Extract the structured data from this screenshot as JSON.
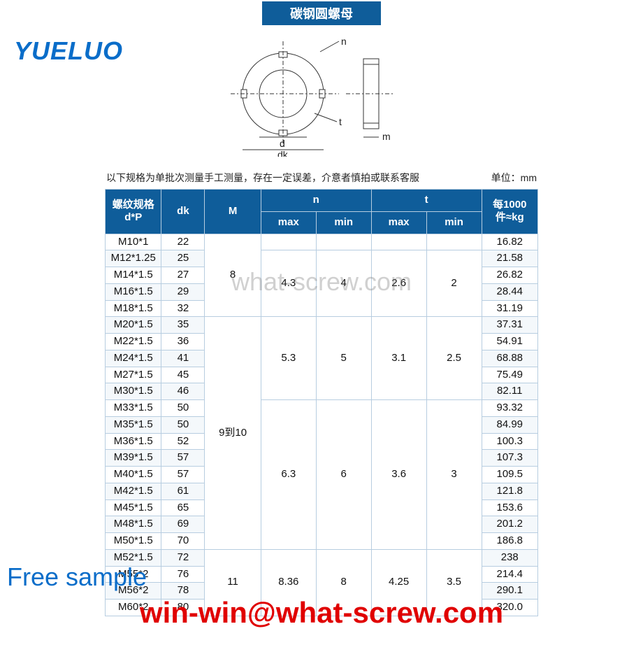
{
  "colors": {
    "banner_bg": "#0f5d9a",
    "header_bg": "#0f5d9a",
    "border": "#b7cde0",
    "logo": "#0a6dc9",
    "email_red": "#e00000"
  },
  "title": "碳钢圆螺母",
  "logo": "YUELUO",
  "note": "以下规格为单批次测量手工测量，存在一定误差，介意者慎拍或联系客服",
  "unit_label": "单位：mm",
  "diagram": {
    "labels": {
      "d": "d",
      "dk": "dk",
      "t": "t",
      "m": "m",
      "n": "n"
    }
  },
  "headers": {
    "spec": "螺纹规格\nd*P",
    "dk": "dk",
    "M": "M",
    "n": "n",
    "t": "t",
    "weight": "每1000\n件≈kg",
    "max": "max",
    "min": "min"
  },
  "m_groups": [
    {
      "value": "8",
      "span": 5
    },
    {
      "value": "9到10",
      "span": 14
    },
    {
      "value": "11",
      "span": 4
    }
  ],
  "nt_groups": [
    {
      "nmax": "",
      "nmin": "",
      "tmax": "",
      "tmin": "",
      "span": 1
    },
    {
      "nmax": "4.3",
      "nmin": "4",
      "tmax": "2.6",
      "tmin": "2",
      "span": 4
    },
    {
      "nmax": "5.3",
      "nmin": "5",
      "tmax": "3.1",
      "tmin": "2.5",
      "span": 5
    },
    {
      "nmax": "6.3",
      "nmin": "6",
      "tmax": "3.6",
      "tmin": "3",
      "span": 9
    },
    {
      "nmax": "8.36",
      "nmin": "8",
      "tmax": "4.25",
      "tmin": "3.5",
      "span": 4
    }
  ],
  "rows": [
    {
      "spec": "M10*1",
      "dk": "22",
      "weight": "16.82"
    },
    {
      "spec": "M12*1.25",
      "dk": "25",
      "weight": "21.58"
    },
    {
      "spec": "M14*1.5",
      "dk": "27",
      "weight": "26.82"
    },
    {
      "spec": "M16*1.5",
      "dk": "29",
      "weight": "28.44"
    },
    {
      "spec": "M18*1.5",
      "dk": "32",
      "weight": "31.19"
    },
    {
      "spec": "M20*1.5",
      "dk": "35",
      "weight": "37.31"
    },
    {
      "spec": "M22*1.5",
      "dk": "36",
      "weight": "54.91"
    },
    {
      "spec": "M24*1.5",
      "dk": "41",
      "weight": "68.88"
    },
    {
      "spec": "M27*1.5",
      "dk": "45",
      "weight": "75.49"
    },
    {
      "spec": "M30*1.5",
      "dk": "46",
      "weight": "82.11"
    },
    {
      "spec": "M33*1.5",
      "dk": "50",
      "weight": "93.32"
    },
    {
      "spec": "M35*1.5",
      "dk": "50",
      "weight": "84.99"
    },
    {
      "spec": "M36*1.5",
      "dk": "52",
      "weight": "100.3"
    },
    {
      "spec": "M39*1.5",
      "dk": "57",
      "weight": "107.3"
    },
    {
      "spec": "M40*1.5",
      "dk": "57",
      "weight": "109.5"
    },
    {
      "spec": "M42*1.5",
      "dk": "61",
      "weight": "121.8"
    },
    {
      "spec": "M45*1.5",
      "dk": "65",
      "weight": "153.6"
    },
    {
      "spec": "M48*1.5",
      "dk": "69",
      "weight": "201.2"
    },
    {
      "spec": "M50*1.5",
      "dk": "70",
      "weight": "186.8"
    },
    {
      "spec": "M52*1.5",
      "dk": "72",
      "weight": "238"
    },
    {
      "spec": "M55*2",
      "dk": "76",
      "weight": "214.4"
    },
    {
      "spec": "M56*2",
      "dk": "78",
      "weight": "290.1"
    },
    {
      "spec": "M60*2",
      "dk": "80",
      "weight": "320.0"
    }
  ],
  "watermark1": "what-screw.com",
  "free_sample": "Free sample",
  "email": "win-win@what-screw.com"
}
